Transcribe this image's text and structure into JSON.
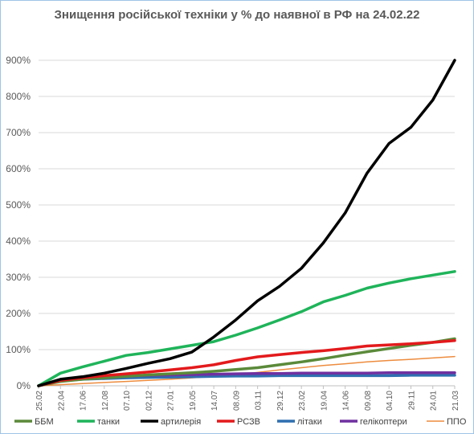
{
  "chart_data": {
    "type": "line",
    "title": "Знищення російської техніки у % до наявної в РФ на 24.02.22",
    "xlabel": "",
    "ylabel": "",
    "ylim": [
      0,
      900
    ],
    "y_ticks": [
      "0%",
      "100%",
      "200%",
      "300%",
      "400%",
      "500%",
      "600%",
      "700%",
      "800%",
      "900%"
    ],
    "x_ticks": [
      "25.02",
      "22.04",
      "17.06",
      "12.08",
      "07.10",
      "02.12",
      "27.01",
      "19.05",
      "14.07",
      "08.09",
      "03.11",
      "29.12",
      "23.02",
      "19.04",
      "14.06",
      "09.08",
      "04.10",
      "29.11",
      "24.01",
      "21.03"
    ],
    "grid": "horizontal",
    "legend_position": "bottom",
    "series": [
      {
        "name": "ББМ",
        "color": "#5b8a3a",
        "width": 3.5,
        "values": [
          0,
          12,
          18,
          22,
          26,
          30,
          33,
          36,
          40,
          45,
          50,
          58,
          66,
          75,
          85,
          94,
          103,
          112,
          120,
          130
        ]
      },
      {
        "name": "танки",
        "color": "#1fb45a",
        "width": 3.5,
        "values": [
          0,
          35,
          52,
          68,
          84,
          92,
          102,
          112,
          122,
          140,
          160,
          182,
          205,
          232,
          250,
          270,
          284,
          296,
          306,
          316
        ]
      },
      {
        "name": "артилерія",
        "color": "#000000",
        "width": 3.5,
        "values": [
          0,
          18,
          25,
          35,
          48,
          62,
          75,
          93,
          135,
          182,
          235,
          275,
          325,
          395,
          478,
          588,
          670,
          715,
          790,
          900
        ]
      },
      {
        "name": "РСЗВ",
        "color": "#e31a1c",
        "width": 3.5,
        "values": [
          0,
          15,
          22,
          28,
          33,
          38,
          44,
          50,
          58,
          70,
          80,
          86,
          92,
          97,
          103,
          110,
          113,
          116,
          120,
          125
        ]
      },
      {
        "name": "літаки",
        "color": "#2f6fb0",
        "width": 3.5,
        "values": [
          0,
          14,
          18,
          20,
          22,
          23,
          24,
          25,
          26,
          27,
          27,
          28,
          28,
          28,
          28,
          28,
          28,
          29,
          29,
          29
        ]
      },
      {
        "name": "гелікоптери",
        "color": "#7030a0",
        "width": 3.5,
        "values": [
          0,
          15,
          22,
          25,
          27,
          29,
          30,
          31,
          32,
          33,
          34,
          34,
          35,
          35,
          35,
          35,
          36,
          36,
          36,
          36
        ]
      },
      {
        "name": "ППО",
        "color": "#ed8c3e",
        "width": 1.5,
        "values": [
          0,
          3,
          6,
          9,
          12,
          15,
          18,
          22,
          26,
          31,
          37,
          44,
          50,
          56,
          61,
          66,
          70,
          73,
          77,
          81
        ]
      }
    ]
  }
}
